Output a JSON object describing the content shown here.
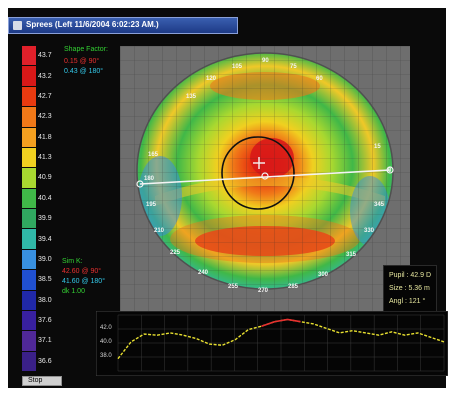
{
  "window": {
    "title": "Sprees (Left 11/6/2004 6:02:23 AM.)"
  },
  "scale": {
    "items": [
      {
        "value": "43.7",
        "color": "#e0202a"
      },
      {
        "value": "43.2",
        "color": "#d81818"
      },
      {
        "value": "42.7",
        "color": "#e83a10"
      },
      {
        "value": "42.3",
        "color": "#f07818"
      },
      {
        "value": "41.8",
        "color": "#f4a020"
      },
      {
        "value": "41.3",
        "color": "#f0d020"
      },
      {
        "value": "40.9",
        "color": "#a8d830"
      },
      {
        "value": "40.4",
        "color": "#40b848"
      },
      {
        "value": "39.9",
        "color": "#30a860"
      },
      {
        "value": "39.4",
        "color": "#30b8a8"
      },
      {
        "value": "39.0",
        "color": "#3890e0"
      },
      {
        "value": "38.5",
        "color": "#2050d0"
      },
      {
        "value": "38.0",
        "color": "#2028a8"
      },
      {
        "value": "37.6",
        "color": "#3820a0"
      },
      {
        "value": "37.1",
        "color": "#502898"
      },
      {
        "value": "36.6",
        "color": "#3a2088"
      }
    ]
  },
  "shape_factor": {
    "label": "Shape Factor:",
    "v1": "0.15 @ 90°",
    "v2": "0.43 @ 180°"
  },
  "sim_k": {
    "label": "Sim K:",
    "v1": "42.60 @ 90°",
    "v2": "41.60 @ 180°",
    "v3": "dk 1.00"
  },
  "map": {
    "top_labels": [
      "105",
      "90",
      "75",
      "120",
      "60",
      "135"
    ],
    "left_labels": [
      "165",
      "180",
      "195",
      "210",
      "225"
    ],
    "right_labels": [
      "15",
      "0",
      "345",
      "330",
      "315"
    ],
    "bottom_labels": [
      "240",
      "255",
      "270",
      "285",
      "300"
    ]
  },
  "readout": {
    "pupil": "Pupil : 42.9 D",
    "size": "Size : 5.36 m",
    "angle": "Angl : 121 °"
  },
  "profile": {
    "y_labels": [
      "42.0",
      "40.0",
      "38.0"
    ],
    "chart_data": {
      "type": "line",
      "y": [
        39.1,
        40.6,
        41.3,
        41.2,
        41.4,
        41.2,
        40.9,
        40.4,
        40.3,
        40.8,
        41.7,
        42.0,
        42.4,
        42.6,
        42.4,
        42.2,
        41.8,
        41.4,
        41.6,
        41.4,
        41.2,
        41.5,
        41.2,
        41.4,
        41.0,
        40.6
      ],
      "ylim": [
        38.0,
        43.0
      ],
      "series_color": "#e8e030",
      "peak_color": "#e83030"
    }
  },
  "buttons": {
    "stop": "Stop"
  }
}
